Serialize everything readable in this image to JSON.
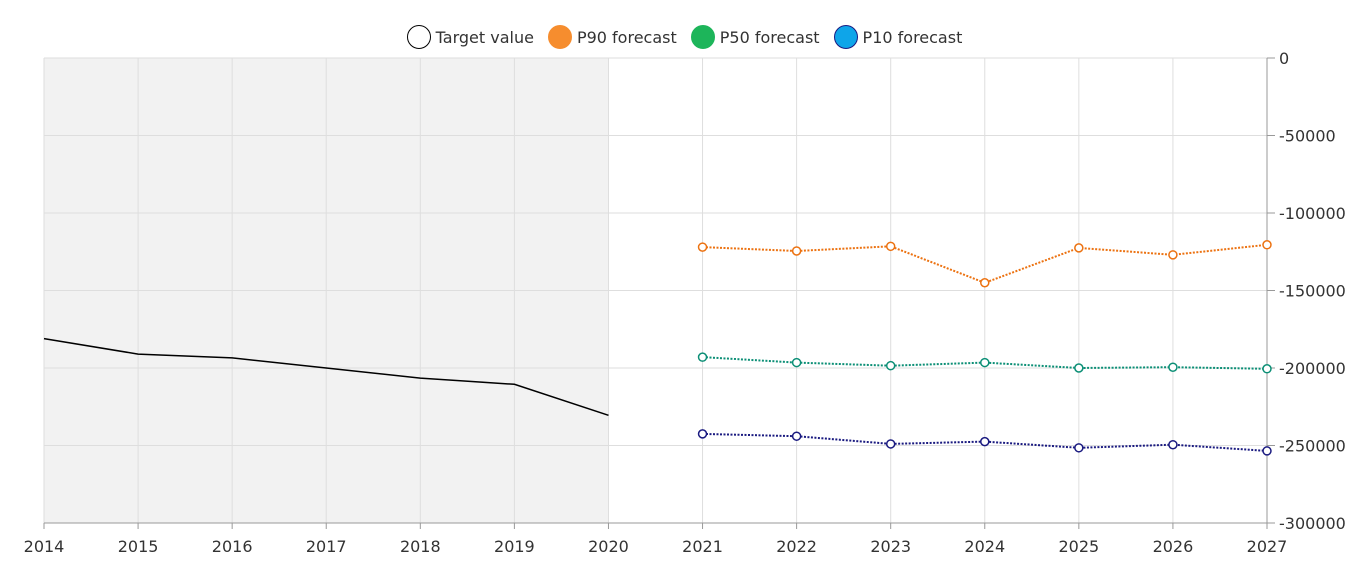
{
  "chart_data": {
    "type": "line",
    "title": "",
    "xlabel": "",
    "ylabel": "",
    "x_ticks": [
      "2014",
      "2015",
      "2016",
      "2017",
      "2018",
      "2019",
      "2020",
      "2021",
      "2022",
      "2023",
      "2024",
      "2025",
      "2026",
      "2027"
    ],
    "xlim": [
      2014,
      2027
    ],
    "y_ticks": [
      "0",
      "-50000",
      "-100000",
      "-150000",
      "-200000",
      "-250000",
      "-300000"
    ],
    "ylim": [
      -300000,
      0
    ],
    "grid": true,
    "legend_position": "top-center",
    "shaded_region": {
      "from": 2014,
      "to": 2020,
      "color": "#f2f2f2"
    },
    "series": [
      {
        "name": "Target value",
        "style": "solid",
        "markers": false,
        "line_color": "#000000",
        "swatch_fill": "#ffffff",
        "swatch_border": "#000000",
        "x": [
          2014,
          2015,
          2016,
          2017,
          2018,
          2019,
          2020
        ],
        "values": [
          -181000,
          -191000,
          -193500,
          -200000,
          -206500,
          -210500,
          -230500
        ]
      },
      {
        "name": "P90 forecast",
        "style": "dotted",
        "markers": true,
        "line_color": "#ec7211",
        "swatch_fill": "#f68d2e",
        "swatch_border": "#f68d2e",
        "x": [
          2021,
          2022,
          2023,
          2024,
          2025,
          2026,
          2027
        ],
        "values": [
          -122000,
          -124500,
          -121500,
          -145000,
          -122500,
          -127000,
          -120500
        ]
      },
      {
        "name": "P50 forecast",
        "style": "dotted",
        "markers": true,
        "line_color": "#0c8f76",
        "swatch_fill": "#1db55a",
        "swatch_border": "#1db55a",
        "x": [
          2021,
          2022,
          2023,
          2024,
          2025,
          2026,
          2027
        ],
        "values": [
          -193000,
          -196500,
          -198500,
          -196500,
          -200000,
          -199500,
          -200500
        ]
      },
      {
        "name": "P10 forecast",
        "style": "dotted",
        "markers": true,
        "line_color": "#1a1a80",
        "swatch_fill": "#0ea5e9",
        "swatch_border": "#1a1a80",
        "x": [
          2021,
          2022,
          2023,
          2024,
          2025,
          2026,
          2027
        ],
        "values": [
          -242500,
          -244000,
          -249000,
          -247500,
          -251500,
          -249500,
          -253500
        ]
      }
    ]
  }
}
